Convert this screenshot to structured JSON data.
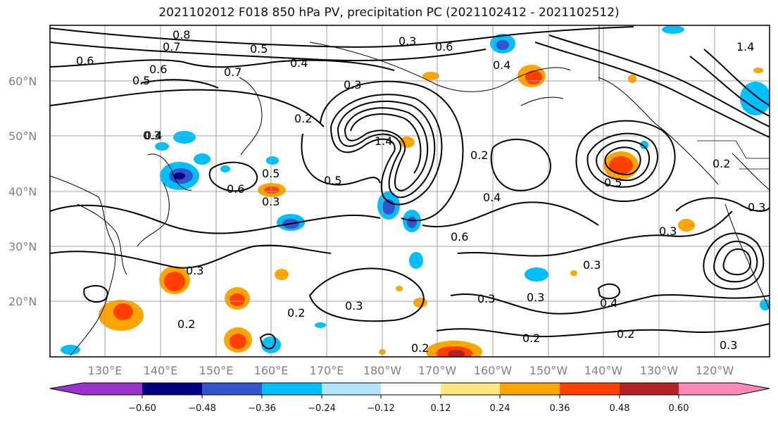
{
  "title": "2021102012 F018 850 hPa PV, precipitation PC (2021102412 - 2021102512)",
  "lat_labels": [
    "60°N",
    "50°N",
    "40°N",
    "30°N",
    "20°N"
  ],
  "lon_labels": [
    "130°E",
    "140°E",
    "150°E",
    "160°E",
    "170°E",
    "180°W",
    "170°W",
    "160°W",
    "150°W",
    "140°W",
    "130°W",
    "120°W"
  ],
  "colorbar": {
    "colors": [
      "#9933cc",
      "#000080",
      "#3355cc",
      "#00bfff",
      "#b3e5ff",
      "#ffffff",
      "#ffe680",
      "#ffa500",
      "#ff4000",
      "#b22222",
      "#ff88bb"
    ],
    "tick_labels": [
      "−0.60",
      "−0.48",
      "−0.36",
      "−0.24",
      "−0.12",
      "0.12",
      "0.24",
      "0.36",
      "0.48",
      "0.60"
    ]
  },
  "contour_labels": [
    "0.8",
    "0.7",
    "0.5",
    "0.6",
    "0.5",
    "0.6",
    "0.7",
    "0.4",
    "0.3",
    "0.2",
    "1.4",
    "0.6",
    "0.4",
    "0.3",
    "0.5",
    "0.6",
    "0.3",
    "0.2",
    "0.4",
    "0.6",
    "0.3",
    "0.4",
    "0.5",
    "0.3",
    "0.2",
    "0.3",
    "0.2",
    "0.2",
    "0.3",
    "0.4",
    "0.3",
    "0.3",
    "0.2",
    "0.2",
    "0.3",
    "1.4",
    "0.3",
    "0.5",
    "0.3",
    "0.2"
  ]
}
